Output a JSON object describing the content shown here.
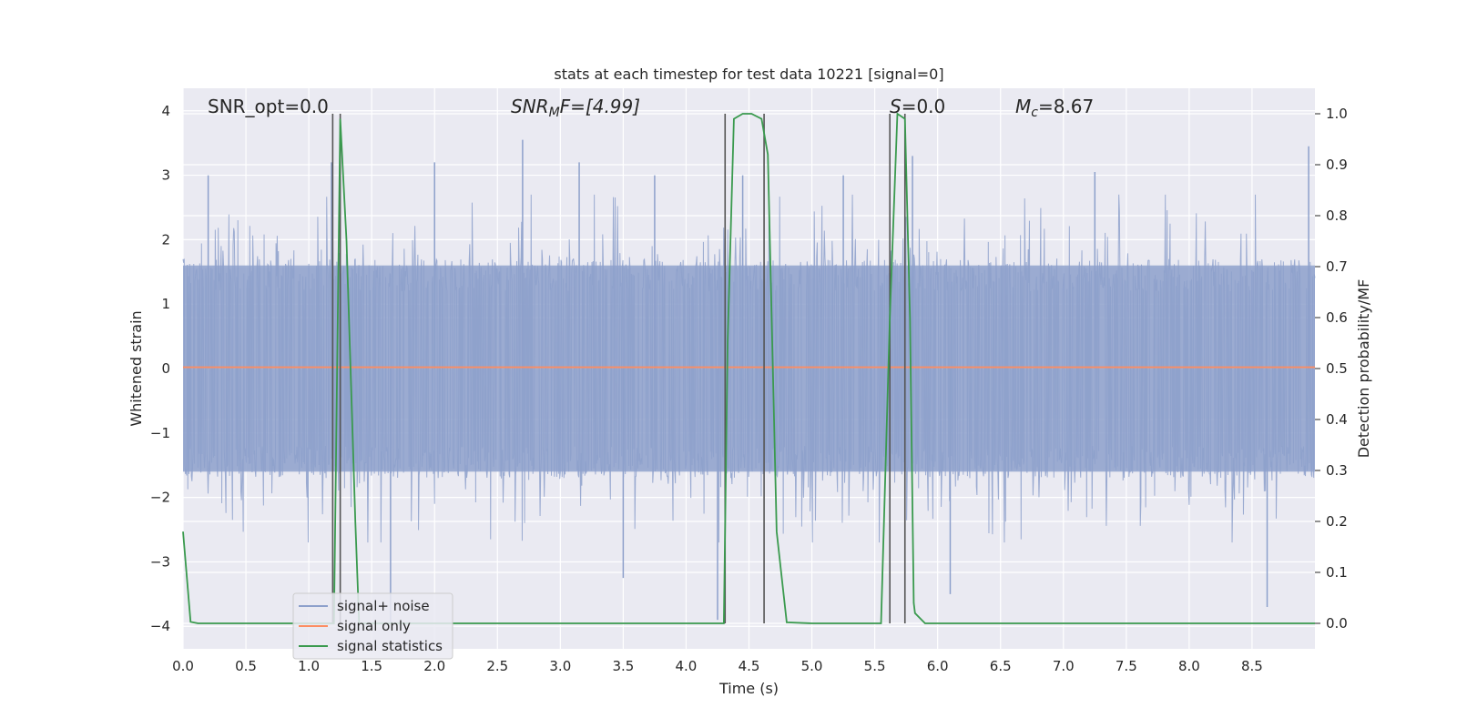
{
  "chart_data": {
    "type": "line",
    "title": "stats at each timestep for test data 10221 [signal=0]",
    "xlabel": "Time (s)",
    "ylabel": "Whitened strain",
    "y2label": "Detection probability/MF",
    "xlim": [
      0.0,
      9.0
    ],
    "ylim": [
      -4.35,
      4.35
    ],
    "y2lim": [
      -0.05,
      1.05
    ],
    "x_ticks": [
      "0.0",
      "0.5",
      "1.0",
      "1.5",
      "2.0",
      "2.5",
      "3.0",
      "3.5",
      "4.0",
      "4.5",
      "5.0",
      "5.5",
      "6.0",
      "6.5",
      "7.0",
      "7.5",
      "8.0",
      "8.5"
    ],
    "y_ticks": [
      "4",
      "3",
      "2",
      "1",
      "0",
      "−1",
      "−2",
      "−3",
      "−4"
    ],
    "y2_ticks": [
      "1.0",
      "0.9",
      "0.8",
      "0.7",
      "0.6",
      "0.5",
      "0.4",
      "0.3",
      "0.2",
      "0.1",
      "0.0"
    ],
    "grid": true,
    "legend_position": "lower-left",
    "annotations": {
      "snr_opt": "SNR_opt=0.0",
      "snr_mf_name": "SNR",
      "snr_mf_sub": "M",
      "snr_mf_tail": "F=[4.99]",
      "s_name": "S",
      "s_tail": "=0.0",
      "mc_name": "M",
      "mc_sub": "c",
      "mc_tail": "=8.67"
    },
    "series": [
      {
        "name": "signal+ noise",
        "color": "#8da0cb",
        "kind": "noise",
        "envelope_typical": 1.6,
        "spikes": [
          [
            0.2,
            3.0
          ],
          [
            1.18,
            3.2
          ],
          [
            2.0,
            3.2
          ],
          [
            2.7,
            3.55
          ],
          [
            3.15,
            3.2
          ],
          [
            3.75,
            3.0
          ],
          [
            4.45,
            3.0
          ],
          [
            5.25,
            3.0
          ],
          [
            5.8,
            3.3
          ],
          [
            7.25,
            3.05
          ],
          [
            8.95,
            3.45
          ],
          [
            1.65,
            -3.95
          ],
          [
            3.5,
            -3.25
          ],
          [
            4.25,
            -3.9
          ],
          [
            6.1,
            -3.5
          ],
          [
            8.62,
            -3.7
          ]
        ]
      },
      {
        "name": "signal only",
        "color": "#fc8d62",
        "x": [
          0.0,
          9.0
        ],
        "y": [
          0.02,
          0.02
        ]
      },
      {
        "name": "signal statistics",
        "color": "#3a9a4e",
        "axis": "right",
        "x": [
          0.0,
          0.06,
          0.12,
          0.5,
          1.0,
          1.17,
          1.2,
          1.25,
          1.3,
          1.37,
          1.4,
          2.0,
          3.0,
          4.0,
          4.3,
          4.33,
          4.38,
          4.45,
          4.52,
          4.6,
          4.65,
          4.72,
          4.8,
          5.0,
          5.5,
          5.55,
          5.62,
          5.68,
          5.74,
          5.78,
          5.81,
          5.82,
          5.9,
          6.0,
          7.0,
          8.0,
          9.0
        ],
        "y": [
          0.18,
          0.003,
          0.0,
          0.0,
          0.0,
          0.0,
          0.0,
          0.99,
          0.75,
          0.2,
          0.0,
          0.0,
          0.0,
          0.0,
          0.0,
          0.55,
          0.99,
          1.0,
          1.0,
          0.99,
          0.92,
          0.18,
          0.002,
          0.0,
          0.0,
          0.0,
          0.6,
          1.0,
          0.99,
          0.6,
          0.04,
          0.02,
          0.0,
          0.0,
          0.0,
          0.0,
          0.0
        ]
      }
    ],
    "vertical_lines": [
      1.19,
      1.25,
      4.31,
      4.62,
      5.62,
      5.74
    ],
    "vlines_color": "#555555"
  }
}
